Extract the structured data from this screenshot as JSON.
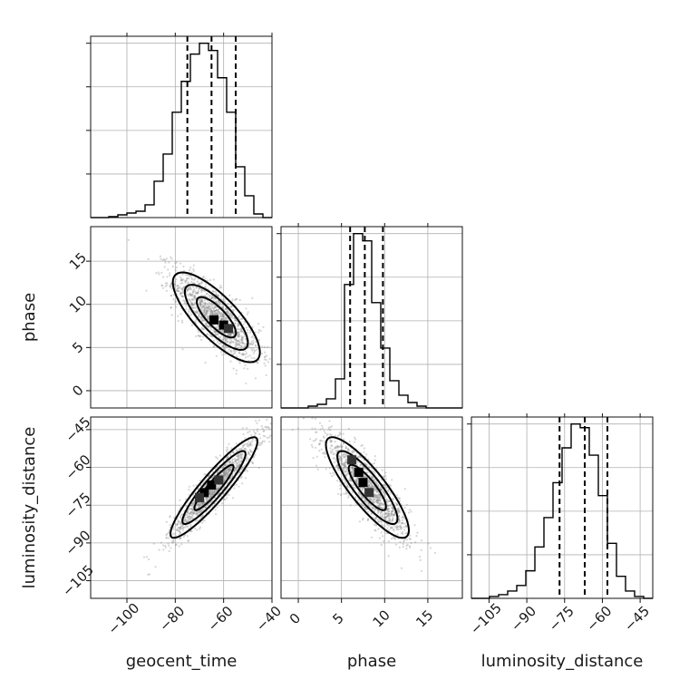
{
  "chart_data": {
    "type": "corner",
    "parameters": [
      "geocent_time",
      "phase",
      "luminosity_distance"
    ],
    "ranges": {
      "geocent_time": [
        -115,
        -40
      ],
      "phase": [
        -2,
        19
      ],
      "luminosity_distance": [
        -112,
        -40
      ]
    },
    "ticks": {
      "geocent_time": [
        -100,
        -80,
        -60,
        -40
      ],
      "phase": [
        0,
        5,
        10,
        15
      ],
      "luminosity_distance": [
        -105,
        -90,
        -75,
        -60,
        -45
      ]
    },
    "tick_labels": {
      "geocent_time": [
        "−100",
        "−80",
        "−60",
        "−40"
      ],
      "phase": [
        "0",
        "5",
        "10",
        "15"
      ],
      "luminosity_distance": [
        "−105",
        "−90",
        "−75",
        "−60",
        "−45"
      ]
    },
    "histograms": {
      "geocent_time": {
        "edges_start": -115,
        "bin_width": 3.75,
        "counts": [
          0,
          0,
          0.5,
          1.5,
          2.5,
          3.5,
          7,
          20,
          35,
          58,
          75,
          90,
          96,
          92,
          77,
          58,
          28,
          12,
          2,
          0
        ],
        "quantiles": [
          -75,
          -65,
          -55
        ]
      },
      "phase": {
        "edges_start": -2,
        "bin_width": 1.05,
        "counts": [
          0,
          0,
          0,
          1,
          2,
          5,
          16,
          68,
          96,
          92,
          58,
          33,
          15,
          7,
          3,
          1,
          0,
          0,
          0,
          0
        ],
        "quantiles": [
          6,
          7.7,
          9.8
        ]
      },
      "luminosity_distance": {
        "edges_start": -112,
        "bin_width": 3.6,
        "counts": [
          0,
          0,
          1,
          2,
          4,
          7,
          15,
          28,
          44,
          63,
          82,
          95,
          93,
          78,
          56,
          30,
          12,
          4,
          1,
          0
        ],
        "quantiles": [
          -77,
          -67,
          -58
        ]
      }
    },
    "pairs": [
      {
        "x": "geocent_time",
        "y": "phase",
        "mean": [
          -63,
          8.5
        ],
        "sd": [
          9,
          2.6
        ],
        "corr": -0.78,
        "peaks": [
          [
            -64,
            8.2
          ],
          [
            -60,
            7.6
          ],
          [
            -58,
            7.2
          ]
        ]
      },
      {
        "x": "geocent_time",
        "y": "luminosity_distance",
        "mean": [
          -64,
          -68
        ],
        "sd": [
          9,
          10
        ],
        "corr": 0.92,
        "peaks": [
          [
            -65,
            -67
          ],
          [
            -68,
            -70
          ],
          [
            -62,
            -65
          ],
          [
            -70,
            -72
          ]
        ]
      },
      {
        "x": "phase",
        "y": "luminosity_distance",
        "mean": [
          8,
          -68
        ],
        "sd": [
          2.4,
          10
        ],
        "corr": -0.85,
        "peaks": [
          [
            7,
            -62
          ],
          [
            7.5,
            -66
          ],
          [
            8.2,
            -70
          ],
          [
            6.2,
            -57
          ]
        ]
      }
    ],
    "grid": true,
    "quantile_levels": [
      0.16,
      0.5,
      0.84
    ]
  }
}
